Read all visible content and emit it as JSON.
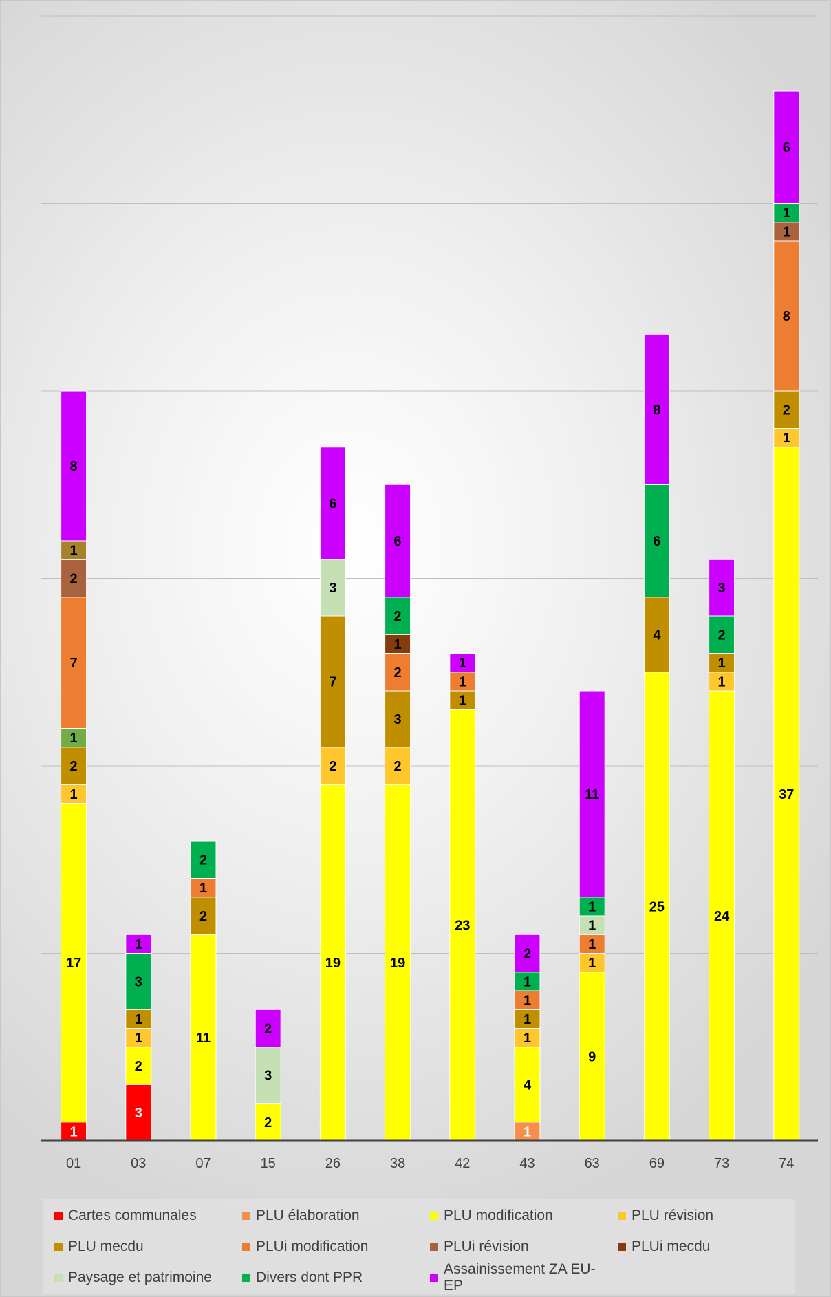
{
  "chart_data": {
    "type": "bar",
    "stacked": true,
    "title": "",
    "xlabel": "",
    "ylabel": "",
    "ylim": [
      0,
      60
    ],
    "grid": true,
    "legend_position": "bottom",
    "categories": [
      "01",
      "03",
      "07",
      "15",
      "26",
      "38",
      "42",
      "43",
      "63",
      "69",
      "73",
      "74"
    ],
    "series": [
      {
        "name": "Cartes communales",
        "color": "#ff0000",
        "values": [
          1,
          3,
          0,
          0,
          0,
          0,
          0,
          0,
          0,
          0,
          0,
          0
        ]
      },
      {
        "name": "PLU élaboration",
        "color": "#f4904c",
        "values": [
          0,
          0,
          0,
          0,
          0,
          0,
          0,
          1,
          0,
          0,
          0,
          0
        ]
      },
      {
        "name": "PLU modification",
        "color": "#ffff00",
        "values": [
          17,
          2,
          11,
          2,
          19,
          19,
          23,
          4,
          9,
          25,
          24,
          37
        ]
      },
      {
        "name": "PLU révision",
        "color": "#ffc72c",
        "values": [
          1,
          1,
          0,
          0,
          2,
          2,
          0,
          1,
          1,
          0,
          1,
          1
        ]
      },
      {
        "name": "PLU mecdu",
        "color": "#bf8f00",
        "values": [
          2,
          1,
          2,
          0,
          7,
          3,
          1,
          1,
          0,
          4,
          1,
          2
        ]
      },
      {
        "name": "PLUi modification",
        "color": "#ed7d31",
        "values": [
          7,
          0,
          1,
          0,
          0,
          2,
          1,
          1,
          1,
          0,
          0,
          8
        ]
      },
      {
        "name": "PLUi révision",
        "color": "#a9623e",
        "values": [
          2,
          0,
          0,
          0,
          0,
          0,
          0,
          0,
          0,
          0,
          0,
          1
        ]
      },
      {
        "name": "PLUi mecdu",
        "color": "#843c0c",
        "values": [
          0,
          0,
          0,
          0,
          0,
          1,
          0,
          0,
          0,
          0,
          0,
          0
        ]
      },
      {
        "name": "Paysage et patrimoine",
        "color": "#c5e0b4",
        "values": [
          0,
          0,
          0,
          3,
          3,
          0,
          0,
          0,
          1,
          0,
          0,
          0
        ]
      },
      {
        "name": "Divers dont PPR",
        "color": "#00b050",
        "values": [
          0,
          3,
          2,
          0,
          0,
          2,
          0,
          1,
          1,
          6,
          2,
          1
        ]
      },
      {
        "name": "Assainissement ZA EU-EP",
        "color": "#cc00ff",
        "values": [
          8,
          1,
          0,
          2,
          6,
          6,
          1,
          2,
          11,
          8,
          3,
          6
        ]
      }
    ],
    "extra_segments": [
      {
        "category": "01",
        "after_series": "PLU mecdu",
        "value": 1,
        "color": "#70ad47"
      },
      {
        "category": "01",
        "after_series": "PLUi révision",
        "value": 1,
        "color": "#a5832c"
      }
    ]
  }
}
